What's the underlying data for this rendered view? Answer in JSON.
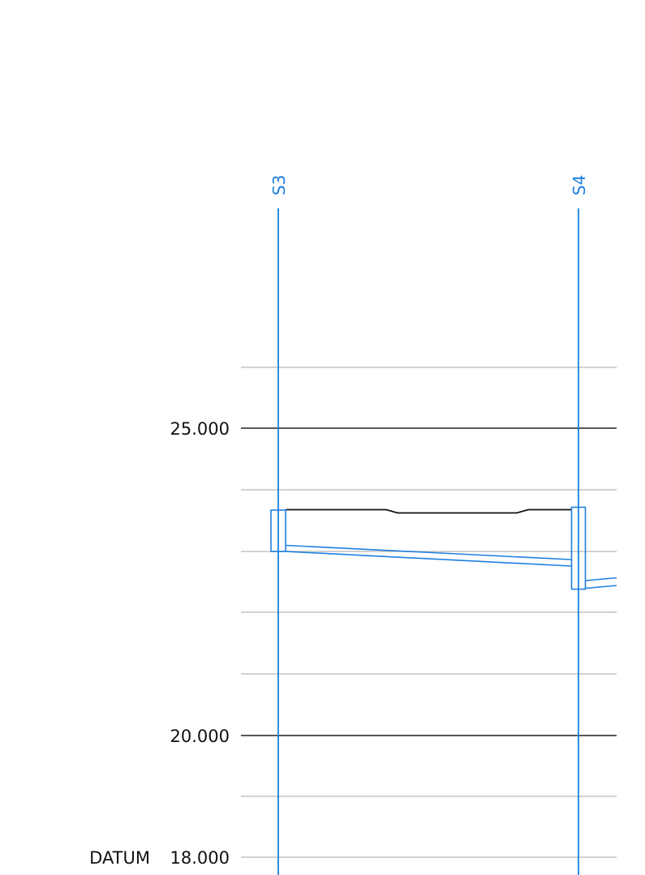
{
  "colors": {
    "grid": "#1e7fe0",
    "major_level": "#222222",
    "minor_level": "#c4c4c4",
    "profile": "#111111",
    "element": "#1e7fe0"
  },
  "datum": {
    "label": "DATUM",
    "value": "18.000"
  },
  "major_levels": [
    {
      "label": "25.000"
    },
    {
      "label": "20.000"
    }
  ],
  "grids": [
    {
      "label": "S3"
    },
    {
      "label": "S4"
    }
  ]
}
